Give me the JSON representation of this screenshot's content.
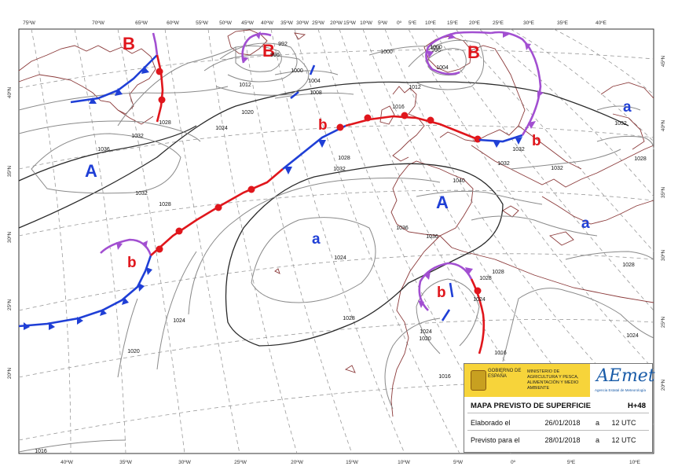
{
  "map": {
    "top_lon_labels": [
      "75ºW",
      "70ºW",
      "65ºW",
      "60ºW",
      "55ºW",
      "50ºW",
      "45ºW",
      "40ºW",
      "35ºW",
      "30ºW",
      "25ºW",
      "20ºW",
      "15ºW",
      "10ºW",
      "5ºW",
      "0º",
      "5ºE",
      "10ºE",
      "15ºE",
      "20ºE",
      "25ºE",
      "30ºE",
      "35ºE",
      "40ºE"
    ],
    "bottom_lon_labels": [
      "40ºW",
      "35ºW",
      "30ºW",
      "25ºW",
      "20ºW",
      "15ºW",
      "10ºW",
      "5ºW",
      "0º",
      "5ºE",
      "10ºE"
    ],
    "left_lat_labels": [
      "40ºN",
      "35ºN",
      "30ºN",
      "25ºN",
      "20ºN"
    ],
    "right_lat_labels": [
      "45ºN",
      "40ºN",
      "35ºN",
      "30ºN",
      "25ºN",
      "20ºN"
    ],
    "isobar_labels": [
      "1028",
      "1032",
      "1036",
      "1032",
      "1028",
      "1024",
      "1020",
      "1024",
      "1020",
      "1016",
      "1012",
      "1008",
      "1004",
      "1000",
      "996",
      "992",
      "1000",
      "996",
      "1004",
      "1000",
      "1012",
      "1016",
      "1032",
      "1028",
      "1032",
      "1032",
      "1028",
      "1040",
      "1036",
      "1036",
      "1028",
      "1028",
      "1024",
      "1024",
      "1020",
      "1016",
      "1016",
      "1024",
      "1028",
      "1032",
      "1032",
      "1028",
      "1024"
    ],
    "systems": [
      {
        "letter": "B",
        "color": "#e0161c"
      },
      {
        "letter": "B",
        "color": "#e0161c"
      },
      {
        "letter": "B",
        "color": "#e0161c"
      },
      {
        "letter": "A",
        "color": "#1f3fd6"
      },
      {
        "letter": "A",
        "color": "#1f3fd6"
      },
      {
        "letter": "a",
        "color": "#1f3fd6"
      },
      {
        "letter": "a",
        "color": "#1f3fd6"
      },
      {
        "letter": "a",
        "color": "#1f3fd6"
      },
      {
        "letter": "b",
        "color": "#e0161c"
      },
      {
        "letter": "b",
        "color": "#e0161c"
      },
      {
        "letter": "b",
        "color": "#e0161c"
      },
      {
        "letter": "b",
        "color": "#e0161c"
      }
    ]
  },
  "info": {
    "gov_text": "GOBIERNO DE ESPAÑA",
    "ministry_text": "MINISTERIO DE AGRICULTURA Y PESCA, ALIMENTACIÓN Y MEDIO AMBIENTE",
    "logo": "AEmet",
    "logo_sub": "Agencia Estatal de Meteorología",
    "title": "MAPA PREVISTO DE SUPERFICIE",
    "horizon": "H+48",
    "elaborado_label": "Elaborado el",
    "elaborado_date": "26/01/2018",
    "elaborado_a": "a",
    "elaborado_time": "12 UTC",
    "previsto_label": "Previsto para el",
    "previsto_date": "28/01/2018",
    "previsto_a": "a",
    "previsto_time": "12 UTC"
  },
  "colors": {
    "cold_front": "#1f3fd6",
    "warm_front": "#e0161c",
    "occluded_front": "#a24fd1",
    "coast": "#8b3a3a"
  }
}
